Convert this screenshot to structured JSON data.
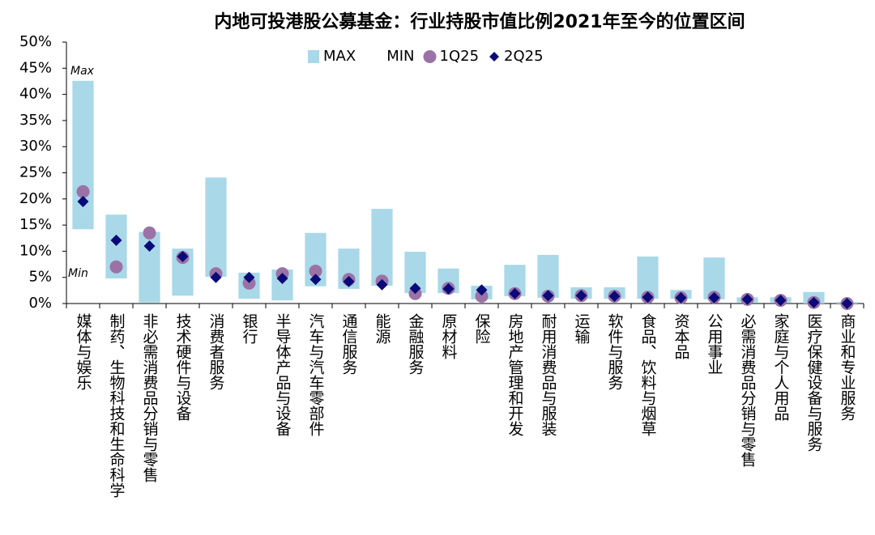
{
  "chart_data": {
    "type": "floating-bar",
    "title": "内地可投港股公募基金：行业持股市值比例2021年至今的位置区间",
    "categories": [
      "媒体与娱乐",
      "制药、生物科技和生命科学",
      "非必需消费品分销与零售",
      "技术硬件与设备",
      "消费者服务",
      "银行",
      "半导体产品与设备",
      "汽车与汽车零部件",
      "通信服务",
      "能源",
      "金融服务",
      "原材料",
      "保险",
      "房地产管理和开发",
      "耐用消费品与服装",
      "运输",
      "软件与服务",
      "食品、饮料与烟草",
      "资本品",
      "公用事业",
      "必需消费品分销与零售",
      "家庭与个人用品",
      "医疗保健设备与服务",
      "商业和专业服务"
    ],
    "series": [
      {
        "name": "MAX",
        "color": "#a9d8e8",
        "values": [
          42.6,
          17.0,
          13.7,
          10.5,
          24.1,
          5.9,
          6.5,
          13.5,
          10.5,
          18.1,
          9.9,
          6.7,
          3.4,
          7.4,
          9.3,
          3.1,
          3.1,
          9.0,
          2.6,
          8.8,
          1.2,
          1.2,
          2.2,
          0.3
        ]
      },
      {
        "name": "MIN",
        "color": "#ffffff",
        "values": [
          14.2,
          4.8,
          0.2,
          1.5,
          5.1,
          0.9,
          0.6,
          3.3,
          2.8,
          3.4,
          2.0,
          2.0,
          0.8,
          1.4,
          1.1,
          0.9,
          0.9,
          0.9,
          0.9,
          0.8,
          0.2,
          0.2,
          0,
          0
        ]
      },
      {
        "name": "1Q25",
        "color": "#9b72a6",
        "marker": "circle",
        "values": [
          21.4,
          7.0,
          13.5,
          8.8,
          5.7,
          3.9,
          5.7,
          6.2,
          4.6,
          4.3,
          1.9,
          2.9,
          1.4,
          1.9,
          1.4,
          1.5,
          1.4,
          1.2,
          1.1,
          1.2,
          0.8,
          0.6,
          0.2,
          0
        ]
      },
      {
        "name": "2Q25",
        "color": "#0a0a78",
        "marker": "diamond",
        "values": [
          19.5,
          12.1,
          11.0,
          9.0,
          5.0,
          5.0,
          4.8,
          4.6,
          4.2,
          3.6,
          2.9,
          2.8,
          2.6,
          1.9,
          1.5,
          1.5,
          1.4,
          1.2,
          1.1,
          1.1,
          0.8,
          0.6,
          0.2,
          0
        ]
      }
    ],
    "annotations": [
      "Max",
      "Min"
    ],
    "ylim": [
      0,
      50
    ],
    "yticks": [
      {
        "value": 0,
        "label": "0%"
      },
      {
        "value": 5,
        "label": "5%"
      },
      {
        "value": 10,
        "label": "10%"
      },
      {
        "value": 15,
        "label": "15%"
      },
      {
        "value": 20,
        "label": "20%"
      },
      {
        "value": 25,
        "label": "25%"
      },
      {
        "value": 30,
        "label": "30%"
      },
      {
        "value": 35,
        "label": "35%"
      },
      {
        "value": 40,
        "label": "40%"
      },
      {
        "value": 45,
        "label": "45%"
      },
      {
        "value": 50,
        "label": "50%"
      }
    ]
  }
}
